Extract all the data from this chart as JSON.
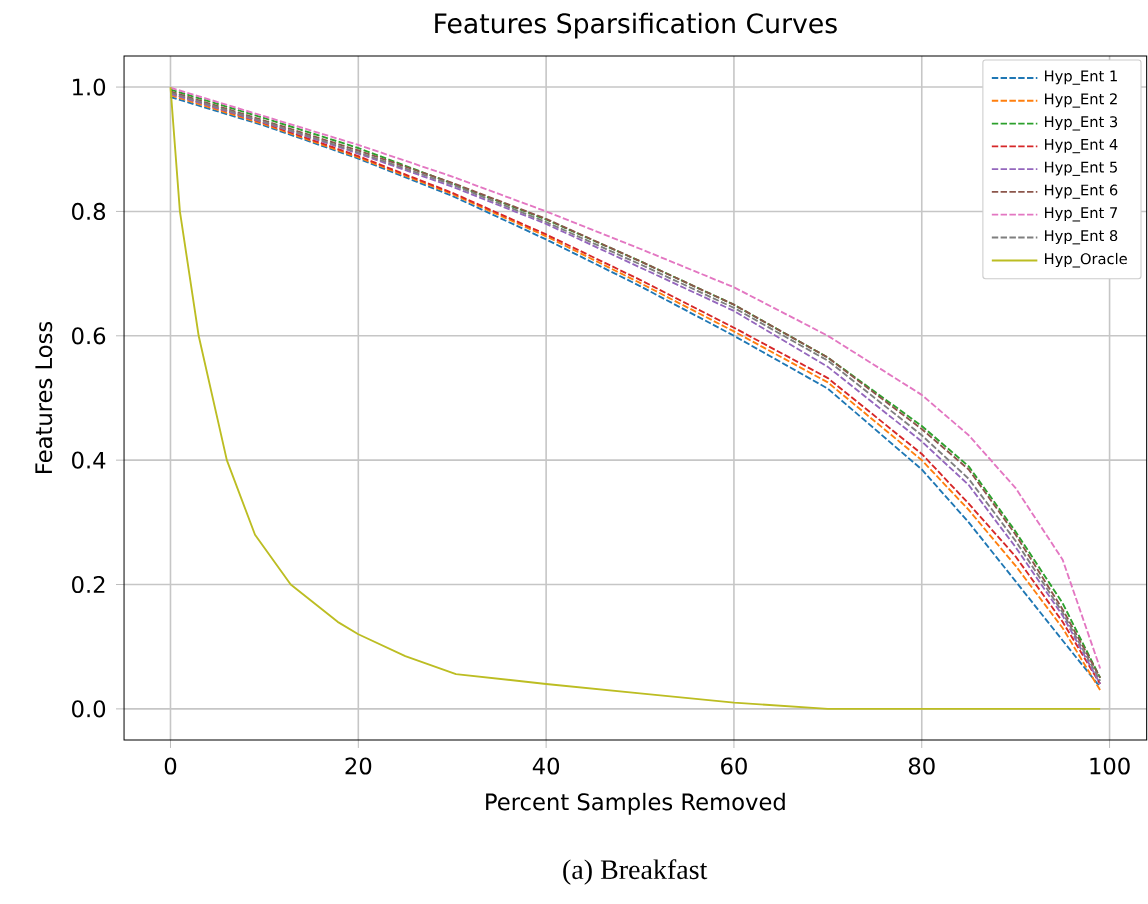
{
  "chart_data": {
    "type": "line",
    "title": "Features Sparsification Curves",
    "xlabel": "Percent Samples Removed",
    "ylabel": "Features Loss",
    "annotations": [
      "(a) Breakfast"
    ],
    "x": [
      0,
      10,
      20,
      30,
      40,
      50,
      60,
      70,
      80,
      85,
      90,
      95,
      99
    ],
    "series": [
      {
        "name": "Hyp_Ent 1",
        "color": "#1f77b4",
        "line_style": "dashed",
        "values": [
          0.984,
          0.938,
          0.885,
          0.825,
          0.755,
          0.68,
          0.6,
          0.515,
          0.385,
          0.3,
          0.205,
          0.11,
          0.035
        ]
      },
      {
        "name": "Hyp_Ent 2",
        "color": "#ff7f0e",
        "line_style": "dashed",
        "values": [
          0.987,
          0.94,
          0.887,
          0.828,
          0.76,
          0.685,
          0.607,
          0.525,
          0.4,
          0.32,
          0.23,
          0.13,
          0.03
        ]
      },
      {
        "name": "Hyp_Ent 3",
        "color": "#2ca02c",
        "line_style": "dashed",
        "values": [
          0.996,
          0.95,
          0.902,
          0.845,
          0.787,
          0.72,
          0.65,
          0.565,
          0.455,
          0.39,
          0.285,
          0.17,
          0.05
        ]
      },
      {
        "name": "Hyp_Ent 4",
        "color": "#d62728",
        "line_style": "dashed",
        "values": [
          0.99,
          0.942,
          0.889,
          0.83,
          0.763,
          0.69,
          0.613,
          0.532,
          0.41,
          0.33,
          0.245,
          0.14,
          0.04
        ]
      },
      {
        "name": "Hyp_Ent 5",
        "color": "#9467bd",
        "line_style": "dashed",
        "values": [
          0.989,
          0.943,
          0.893,
          0.84,
          0.78,
          0.71,
          0.64,
          0.55,
          0.43,
          0.36,
          0.26,
          0.15,
          0.04
        ]
      },
      {
        "name": "Hyp_Ent 6",
        "color": "#8c564b",
        "line_style": "dashed",
        "values": [
          0.993,
          0.946,
          0.898,
          0.846,
          0.788,
          0.72,
          0.65,
          0.565,
          0.45,
          0.385,
          0.28,
          0.16,
          0.05
        ]
      },
      {
        "name": "Hyp_Ent 7",
        "color": "#e377c2",
        "line_style": "dashed",
        "values": [
          0.999,
          0.953,
          0.907,
          0.856,
          0.8,
          0.74,
          0.678,
          0.6,
          0.505,
          0.44,
          0.355,
          0.24,
          0.065
        ]
      },
      {
        "name": "Hyp_Ent 8",
        "color": "#7f7f7f",
        "line_style": "dashed",
        "values": [
          0.991,
          0.944,
          0.895,
          0.843,
          0.783,
          0.715,
          0.645,
          0.56,
          0.44,
          0.37,
          0.27,
          0.155,
          0.045
        ]
      },
      {
        "name": "Hyp_Oracle",
        "color": "#bcbd22",
        "line_style": "solid",
        "x": [
          0,
          0.5,
          1,
          3,
          4.5,
          6,
          9,
          12.8,
          17.8,
          20,
          25,
          30.4,
          40,
          50,
          60,
          70,
          80,
          90,
          99
        ],
        "values": [
          1.0,
          0.9,
          0.8,
          0.6,
          0.5,
          0.4,
          0.28,
          0.2,
          0.14,
          0.12,
          0.085,
          0.056,
          0.04,
          0.025,
          0.01,
          0.0,
          0.0,
          0.0,
          0.0
        ]
      }
    ],
    "xlim": [
      -4.95,
      103.95
    ],
    "ylim": [
      -0.05,
      1.05
    ],
    "xticks": [
      0,
      20,
      40,
      60,
      80,
      100
    ],
    "yticks": [
      {
        "value": 0,
        "label": "0.0"
      },
      {
        "value": 0.2,
        "label": "0.2"
      },
      {
        "value": 0.4,
        "label": "0.4"
      },
      {
        "value": 0.6,
        "label": "0.6"
      },
      {
        "value": 0.8,
        "label": "0.8"
      },
      {
        "value": 1,
        "label": "1.0"
      }
    ],
    "grid": true,
    "legend": "top right"
  }
}
